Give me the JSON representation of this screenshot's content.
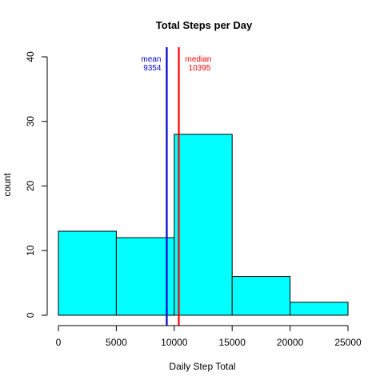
{
  "chart_data": {
    "type": "bar",
    "title": "Total Steps per Day",
    "xlabel": "Daily Step Total",
    "ylabel": "count",
    "xlim": [
      0,
      25000
    ],
    "ylim": [
      0,
      40
    ],
    "x_ticks": [
      0,
      5000,
      10000,
      15000,
      20000,
      25000
    ],
    "y_ticks": [
      0,
      10,
      20,
      30,
      40
    ],
    "bins": [
      {
        "start": 0,
        "end": 5000,
        "count": 13
      },
      {
        "start": 5000,
        "end": 10000,
        "count": 12
      },
      {
        "start": 10000,
        "end": 15000,
        "count": 28
      },
      {
        "start": 15000,
        "end": 20000,
        "count": 6
      },
      {
        "start": 20000,
        "end": 25000,
        "count": 2
      }
    ],
    "bar_color": "#00FFFF",
    "grid": false,
    "reference_lines": [
      {
        "label": "mean",
        "value_label": "9354",
        "x": 9354,
        "color": "#0000CC"
      },
      {
        "label": "median",
        "value_label": "10395",
        "x": 10395,
        "color": "#FF0000"
      }
    ]
  }
}
